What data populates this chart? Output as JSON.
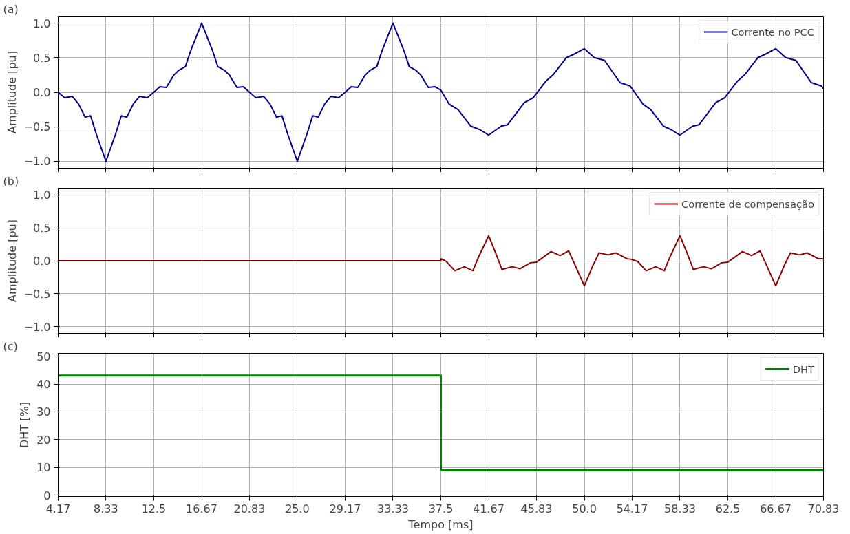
{
  "chart_data": [
    {
      "type": "line",
      "annotations": [
        "(a)"
      ],
      "ylabel": "Amplitude [pu]",
      "xlim": [
        4.17,
        70.83
      ],
      "xticks": [
        4.17,
        8.33,
        12.5,
        16.67,
        20.83,
        25,
        29.17,
        33.33,
        37.5,
        41.67,
        45.83,
        50,
        54.17,
        58.33,
        62.5,
        66.67,
        70.83
      ],
      "ylim": [
        -1.1,
        1.1
      ],
      "yticks": [
        {
          "value": -1,
          "label": "−1.0"
        },
        {
          "value": -0.5,
          "label": "−0.5"
        },
        {
          "value": 0,
          "label": "0.0"
        },
        {
          "value": 0.5,
          "label": "0.5"
        },
        {
          "value": 1,
          "label": "1.0"
        }
      ],
      "grid": true,
      "legend": "top right",
      "tick_labels": "y",
      "line_style": "solid",
      "series": [
        {
          "name": "Corrente no PCC",
          "color": "#00008b",
          "x": [
            4.17,
            4.73,
            5.4,
            5.95,
            6.51,
            6.99,
            7.5,
            8.33,
            9.16,
            9.67,
            10.15,
            10.71,
            11.26,
            11.93,
            12.5,
            13.03,
            13.59,
            14.25,
            14.7,
            15.25,
            15.69,
            16.67,
            17.64,
            18.08,
            18.63,
            19.08,
            19.74,
            20.3,
            20.83,
            21.4,
            22.07,
            22.62,
            23.18,
            23.66,
            24.17,
            25.0,
            25.83,
            26.34,
            26.82,
            27.38,
            27.93,
            28.6,
            29.17,
            29.7,
            30.26,
            30.92,
            31.37,
            31.92,
            32.36,
            33.33,
            34.31,
            34.75,
            35.3,
            35.75,
            36.41,
            36.97,
            37.5,
            38.21,
            38.99,
            40.1,
            40.88,
            41.67,
            42.77,
            43.32,
            44.77,
            45.54,
            46.65,
            47.32,
            48.43,
            49.1,
            50.0,
            50.87,
            51.76,
            53.1,
            53.99,
            55.1,
            55.77,
            56.88,
            57.54,
            58.33,
            59.44,
            60.0,
            61.44,
            62.22,
            63.33,
            64.0,
            65.11,
            65.77,
            66.67,
            67.54,
            68.42,
            69.76,
            70.65,
            70.83
          ],
          "values": [
            0,
            -0.08,
            -0.06,
            -0.17,
            -0.36,
            -0.34,
            -0.61,
            -1.0,
            -0.61,
            -0.34,
            -0.36,
            -0.17,
            -0.06,
            -0.08,
            0,
            0.08,
            0.07,
            0.25,
            0.32,
            0.37,
            0.59,
            1.0,
            0.59,
            0.37,
            0.32,
            0.25,
            0.07,
            0.08,
            0,
            -0.08,
            -0.06,
            -0.17,
            -0.36,
            -0.34,
            -0.61,
            -1.0,
            -0.61,
            -0.34,
            -0.36,
            -0.17,
            -0.06,
            -0.08,
            0,
            0.08,
            0.07,
            0.25,
            0.32,
            0.37,
            0.59,
            1.0,
            0.59,
            0.37,
            0.32,
            0.25,
            0.07,
            0.08,
            0.03,
            -0.17,
            -0.25,
            -0.49,
            -0.54,
            -0.62,
            -0.49,
            -0.47,
            -0.15,
            -0.08,
            0.16,
            0.26,
            0.5,
            0.55,
            0.63,
            0.5,
            0.46,
            0.14,
            0.09,
            -0.17,
            -0.25,
            -0.49,
            -0.54,
            -0.62,
            -0.49,
            -0.47,
            -0.15,
            -0.08,
            0.16,
            0.26,
            0.5,
            0.55,
            0.63,
            0.5,
            0.46,
            0.14,
            0.09,
            0.05
          ]
        }
      ]
    },
    {
      "type": "line",
      "annotations": [
        "(b)"
      ],
      "ylabel": "Amplitude [pu]",
      "xlim": [
        4.17,
        70.83
      ],
      "xticks": [
        4.17,
        8.33,
        12.5,
        16.67,
        20.83,
        25,
        29.17,
        33.33,
        37.5,
        41.67,
        45.83,
        50,
        54.17,
        58.33,
        62.5,
        66.67,
        70.83
      ],
      "ylim": [
        -1.1,
        1.1
      ],
      "yticks": [
        {
          "value": -1,
          "label": "−1.0"
        },
        {
          "value": -0.5,
          "label": "−0.5"
        },
        {
          "value": 0,
          "label": "0.0"
        },
        {
          "value": 0.5,
          "label": "0.5"
        },
        {
          "value": 1,
          "label": "1.0"
        }
      ],
      "grid": true,
      "legend": "top right",
      "tick_labels": "y",
      "line_style": "solid",
      "series": [
        {
          "name": "Corrente de compensação",
          "color": "#8b0000",
          "x": [
            4.17,
            37.5,
            37.55,
            37.97,
            38.72,
            39.55,
            40.29,
            40.79,
            41.67,
            42.25,
            42.82,
            43.72,
            44.39,
            45.3,
            45.83,
            47.1,
            47.89,
            48.63,
            49.13,
            50.0,
            50.72,
            51.28,
            52.07,
            52.73,
            53.74,
            54.17,
            54.64,
            55.39,
            56.22,
            56.96,
            57.46,
            58.33,
            58.92,
            59.49,
            60.39,
            61.06,
            61.97,
            62.5,
            63.77,
            64.56,
            65.3,
            65.8,
            66.67,
            67.39,
            67.95,
            68.74,
            69.4,
            70.41,
            70.83
          ],
          "values": [
            0,
            0,
            0.03,
            -0.01,
            -0.15,
            -0.09,
            -0.15,
            0.06,
            0.38,
            0.13,
            -0.13,
            -0.09,
            -0.12,
            -0.03,
            -0.02,
            0.14,
            0.08,
            0.15,
            -0.04,
            -0.38,
            -0.08,
            0.12,
            0.09,
            0.12,
            0.03,
            0.02,
            -0.01,
            -0.15,
            -0.09,
            -0.15,
            0.06,
            0.38,
            0.13,
            -0.13,
            -0.09,
            -0.12,
            -0.03,
            -0.02,
            0.14,
            0.08,
            0.15,
            -0.04,
            -0.38,
            -0.08,
            0.12,
            0.09,
            0.12,
            0.03,
            0.03
          ]
        }
      ]
    },
    {
      "type": "step",
      "annotations": [
        "(c)"
      ],
      "xlabel": "Tempo [ms]",
      "ylabel": "DHT [%]",
      "xlim": [
        4.17,
        70.83
      ],
      "xticks": [
        4.17,
        8.33,
        12.5,
        16.67,
        20.83,
        {
          "value": 25,
          "label": "25.0"
        },
        29.17,
        33.33,
        37.5,
        41.67,
        45.83,
        {
          "value": 50,
          "label": "50.0"
        },
        54.17,
        58.33,
        62.5,
        66.67,
        70.83
      ],
      "ylim": [
        -0.4,
        51
      ],
      "yticks": [
        0,
        10,
        20,
        30,
        40,
        50
      ],
      "grid": true,
      "legend": "top right",
      "line_style": "solid",
      "series": [
        {
          "name": "DHT",
          "color": "#008000",
          "x": [
            4.17,
            37.5,
            70.83
          ],
          "values": [
            43,
            9,
            9
          ]
        }
      ]
    }
  ]
}
